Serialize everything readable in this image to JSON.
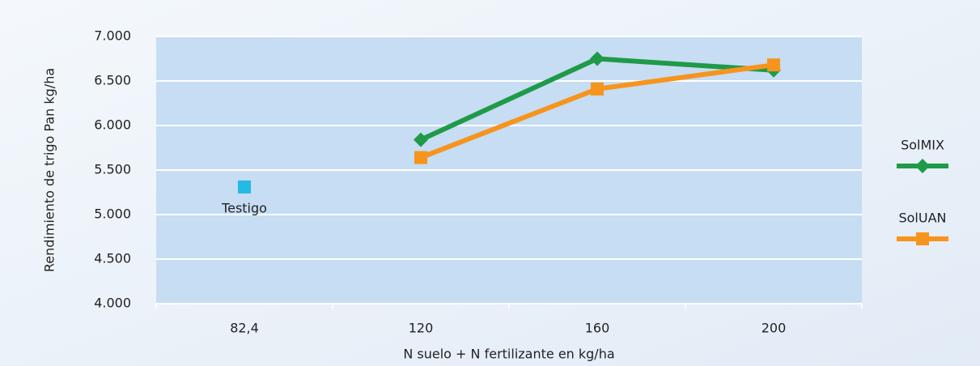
{
  "chart_data": {
    "type": "line",
    "y_label": "Rendimiento de trigo Pan kg/ha",
    "x_label": "N suelo + N fertilizante en kg/ha",
    "categories": [
      "82,4",
      "120",
      "160",
      "200"
    ],
    "series": [
      {
        "name": "SolMIX",
        "color": "#1f9a48",
        "marker": "diamond",
        "values": [
          null,
          5840,
          6750,
          6620
        ]
      },
      {
        "name": "SolUAN",
        "color": "#f7941d",
        "marker": "square",
        "values": [
          null,
          5640,
          6410,
          6680
        ]
      }
    ],
    "testigo": {
      "label": "Testigo",
      "color": "#25b9e6",
      "values": [
        5310,
        null,
        null,
        null
      ]
    },
    "ylim": [
      4000,
      7000
    ],
    "yticks": [
      {
        "value": 4000,
        "label": "4.000"
      },
      {
        "value": 4500,
        "label": "4.500"
      },
      {
        "value": 5000,
        "label": "5.000"
      },
      {
        "value": 5500,
        "label": "5.500"
      },
      {
        "value": 6000,
        "label": "6.000"
      },
      {
        "value": 6500,
        "label": "6.500"
      },
      {
        "value": 7000,
        "label": "7.000"
      }
    ],
    "grid": true,
    "legend": "right"
  }
}
